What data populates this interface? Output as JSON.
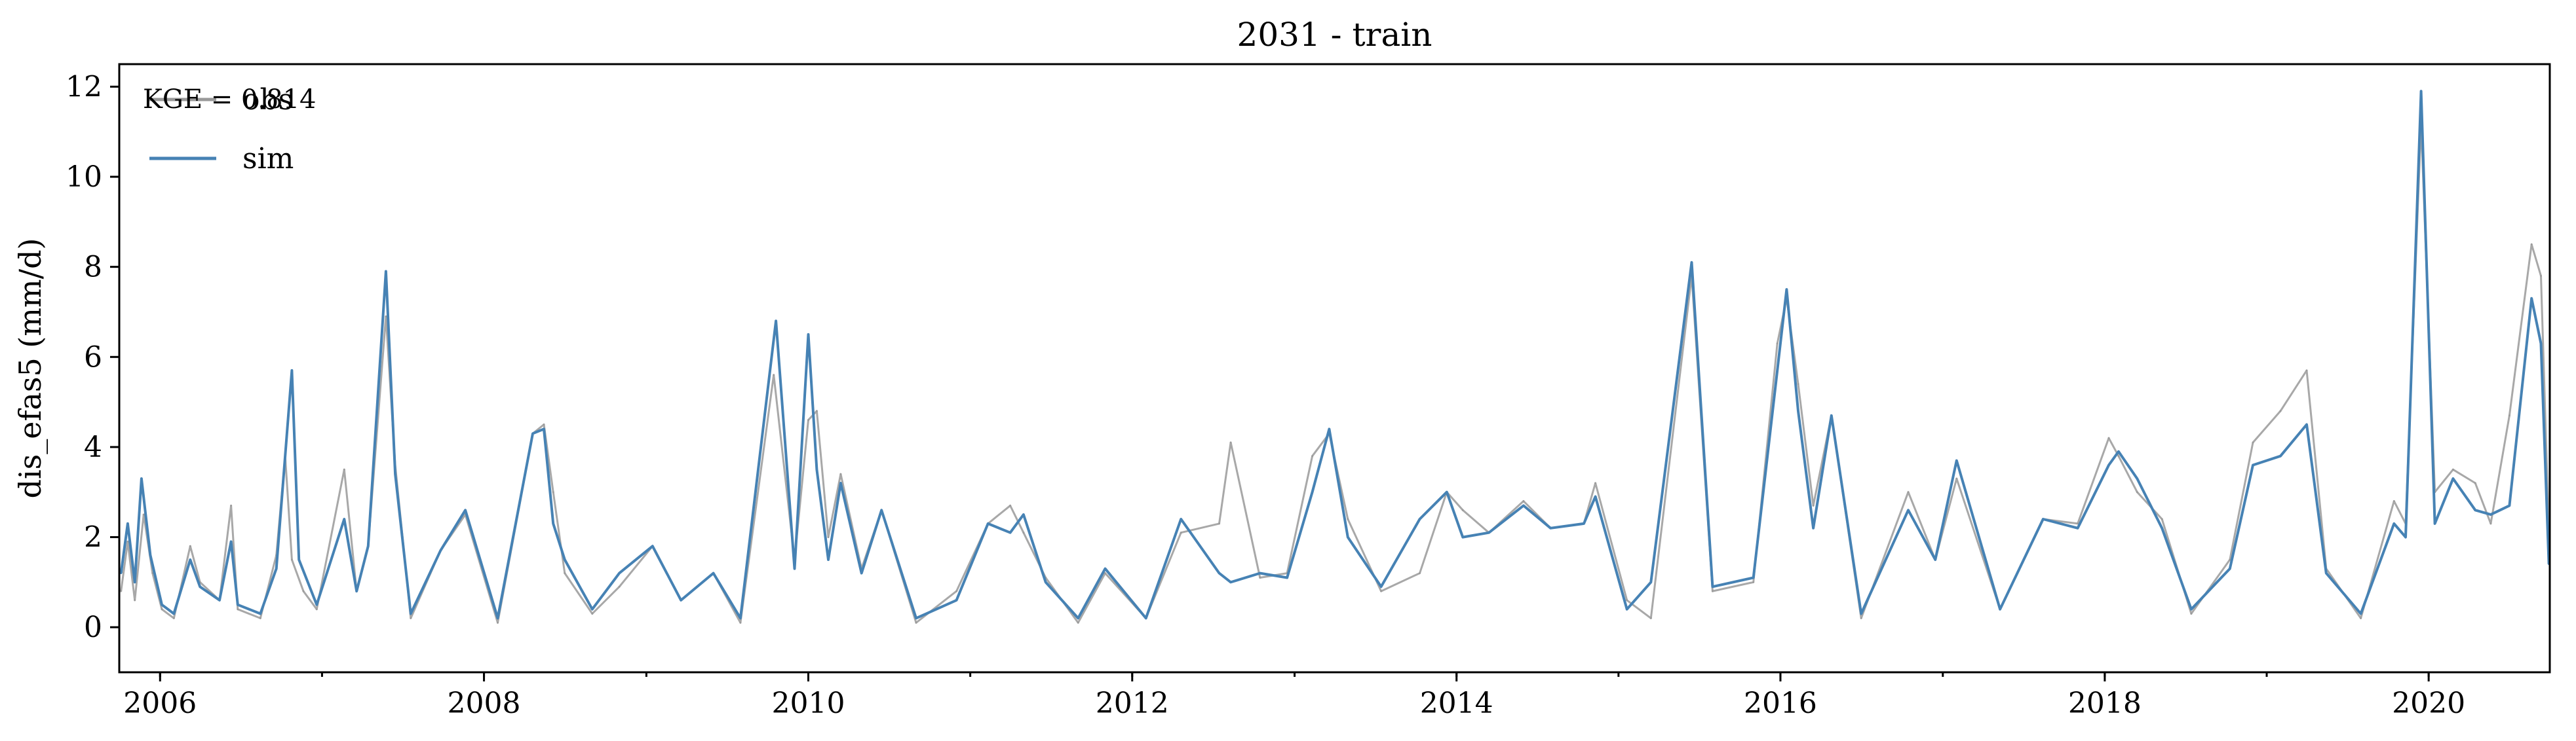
{
  "chart_data": {
    "type": "line",
    "title": "2031 - train",
    "xlabel": "",
    "ylabel": "dis_efas5 (mm/d)",
    "x_range": [
      "2005-10-01",
      "2020-09-30"
    ],
    "ylim": [
      -1,
      12.5
    ],
    "y_ticks": [
      0,
      2,
      4,
      6,
      8,
      10,
      12
    ],
    "x_ticks": [
      "2006",
      "2008",
      "2010",
      "2012",
      "2014",
      "2016",
      "2018",
      "2020"
    ],
    "grid": false,
    "legend_position": "top-left",
    "annotation": "KGE = 0.814",
    "series": [
      {
        "name": "obs",
        "color": "#999999",
        "points": [
          [
            "2005-10-05",
            0.8
          ],
          [
            "2005-10-20",
            1.9
          ],
          [
            "2005-11-05",
            0.6
          ],
          [
            "2005-11-25",
            2.5
          ],
          [
            "2005-12-15",
            1.2
          ],
          [
            "2006-01-05",
            0.4
          ],
          [
            "2006-02-01",
            0.2
          ],
          [
            "2006-03-10",
            1.8
          ],
          [
            "2006-04-01",
            1.0
          ],
          [
            "2006-05-15",
            0.6
          ],
          [
            "2006-06-10",
            2.7
          ],
          [
            "2006-06-25",
            0.4
          ],
          [
            "2006-08-15",
            0.2
          ],
          [
            "2006-09-20",
            1.6
          ],
          [
            "2006-10-10",
            3.8
          ],
          [
            "2006-10-25",
            1.5
          ],
          [
            "2006-11-20",
            0.8
          ],
          [
            "2006-12-20",
            0.4
          ],
          [
            "2007-02-20",
            3.5
          ],
          [
            "2007-03-20",
            0.8
          ],
          [
            "2007-04-15",
            1.8
          ],
          [
            "2007-05-25",
            6.9
          ],
          [
            "2007-06-15",
            3.6
          ],
          [
            "2007-07-20",
            0.2
          ],
          [
            "2007-09-25",
            1.7
          ],
          [
            "2007-11-20",
            2.5
          ],
          [
            "2008-02-01",
            0.1
          ],
          [
            "2008-04-20",
            4.3
          ],
          [
            "2008-05-15",
            4.5
          ],
          [
            "2008-06-05",
            3.0
          ],
          [
            "2008-07-01",
            1.2
          ],
          [
            "2008-09-01",
            0.3
          ],
          [
            "2008-11-01",
            0.9
          ],
          [
            "2009-01-15",
            1.8
          ],
          [
            "2009-03-20",
            0.6
          ],
          [
            "2009-06-01",
            1.2
          ],
          [
            "2009-08-01",
            0.1
          ],
          [
            "2009-10-15",
            5.6
          ],
          [
            "2009-12-01",
            1.5
          ],
          [
            "2010-01-01",
            4.6
          ],
          [
            "2010-01-20",
            4.8
          ],
          [
            "2010-02-15",
            2.0
          ],
          [
            "2010-03-15",
            3.4
          ],
          [
            "2010-05-01",
            1.3
          ],
          [
            "2010-06-15",
            2.6
          ],
          [
            "2010-09-01",
            0.1
          ],
          [
            "2010-12-01",
            0.8
          ],
          [
            "2011-02-10",
            2.3
          ],
          [
            "2011-04-01",
            2.7
          ],
          [
            "2011-05-01",
            2.1
          ],
          [
            "2011-06-20",
            1.1
          ],
          [
            "2011-09-01",
            0.1
          ],
          [
            "2011-11-01",
            1.2
          ],
          [
            "2012-02-01",
            0.2
          ],
          [
            "2012-04-20",
            2.1
          ],
          [
            "2012-07-15",
            2.3
          ],
          [
            "2012-08-10",
            4.1
          ],
          [
            "2012-10-15",
            1.1
          ],
          [
            "2012-12-15",
            1.2
          ],
          [
            "2013-02-10",
            3.8
          ],
          [
            "2013-03-20",
            4.3
          ],
          [
            "2013-05-01",
            2.4
          ],
          [
            "2013-07-15",
            0.8
          ],
          [
            "2013-10-10",
            1.2
          ],
          [
            "2013-12-10",
            3.0
          ],
          [
            "2014-01-15",
            2.6
          ],
          [
            "2014-03-15",
            2.1
          ],
          [
            "2014-06-01",
            2.8
          ],
          [
            "2014-08-01",
            2.2
          ],
          [
            "2014-10-15",
            2.3
          ],
          [
            "2014-11-10",
            3.2
          ],
          [
            "2015-01-20",
            0.6
          ],
          [
            "2015-03-15",
            0.2
          ],
          [
            "2015-06-15",
            7.8
          ],
          [
            "2015-08-01",
            0.8
          ],
          [
            "2015-11-01",
            1.0
          ],
          [
            "2015-12-25",
            6.3
          ],
          [
            "2016-01-15",
            7.3
          ],
          [
            "2016-02-10",
            5.4
          ],
          [
            "2016-03-15",
            2.7
          ],
          [
            "2016-04-25",
            4.7
          ],
          [
            "2016-07-01",
            0.2
          ],
          [
            "2016-10-15",
            3.0
          ],
          [
            "2016-12-15",
            1.5
          ],
          [
            "2017-02-01",
            3.3
          ],
          [
            "2017-05-10",
            0.4
          ],
          [
            "2017-08-15",
            2.4
          ],
          [
            "2017-11-01",
            2.3
          ],
          [
            "2018-01-10",
            4.2
          ],
          [
            "2018-02-01",
            3.8
          ],
          [
            "2018-03-15",
            3.0
          ],
          [
            "2018-05-10",
            2.4
          ],
          [
            "2018-07-15",
            0.3
          ],
          [
            "2018-10-10",
            1.5
          ],
          [
            "2018-12-01",
            4.1
          ],
          [
            "2019-02-01",
            4.8
          ],
          [
            "2019-04-01",
            5.7
          ],
          [
            "2019-05-15",
            1.3
          ],
          [
            "2019-08-01",
            0.2
          ],
          [
            "2019-10-15",
            2.8
          ],
          [
            "2019-11-10",
            2.3
          ],
          [
            "2019-12-15",
            11.2
          ],
          [
            "2020-01-15",
            3.0
          ],
          [
            "2020-02-25",
            3.5
          ],
          [
            "2020-04-15",
            3.2
          ],
          [
            "2020-05-20",
            2.3
          ],
          [
            "2020-07-01",
            4.7
          ],
          [
            "2020-08-20",
            8.5
          ],
          [
            "2020-09-10",
            7.8
          ],
          [
            "2020-09-28",
            2.1
          ]
        ]
      },
      {
        "name": "sim",
        "color": "#4682b4",
        "points": [
          [
            "2005-10-05",
            1.2
          ],
          [
            "2005-10-20",
            2.3
          ],
          [
            "2005-11-05",
            1.0
          ],
          [
            "2005-11-20",
            3.3
          ],
          [
            "2005-12-10",
            1.6
          ],
          [
            "2006-01-05",
            0.5
          ],
          [
            "2006-02-01",
            0.3
          ],
          [
            "2006-03-10",
            1.5
          ],
          [
            "2006-04-01",
            0.9
          ],
          [
            "2006-05-15",
            0.6
          ],
          [
            "2006-06-10",
            1.9
          ],
          [
            "2006-06-25",
            0.5
          ],
          [
            "2006-08-15",
            0.3
          ],
          [
            "2006-09-20",
            1.3
          ],
          [
            "2006-10-25",
            5.7
          ],
          [
            "2006-11-10",
            1.5
          ],
          [
            "2006-12-20",
            0.5
          ],
          [
            "2007-02-20",
            2.4
          ],
          [
            "2007-03-20",
            0.8
          ],
          [
            "2007-04-15",
            1.8
          ],
          [
            "2007-05-25",
            7.9
          ],
          [
            "2007-06-15",
            3.4
          ],
          [
            "2007-07-20",
            0.3
          ],
          [
            "2007-09-25",
            1.7
          ],
          [
            "2007-11-20",
            2.6
          ],
          [
            "2008-02-01",
            0.2
          ],
          [
            "2008-04-20",
            4.3
          ],
          [
            "2008-05-15",
            4.4
          ],
          [
            "2008-06-05",
            2.3
          ],
          [
            "2008-07-01",
            1.5
          ],
          [
            "2008-09-01",
            0.4
          ],
          [
            "2008-11-01",
            1.2
          ],
          [
            "2009-01-15",
            1.8
          ],
          [
            "2009-03-20",
            0.6
          ],
          [
            "2009-06-01",
            1.2
          ],
          [
            "2009-08-01",
            0.2
          ],
          [
            "2009-10-20",
            6.8
          ],
          [
            "2009-12-01",
            1.3
          ],
          [
            "2010-01-01",
            6.5
          ],
          [
            "2010-01-20",
            3.5
          ],
          [
            "2010-02-15",
            1.5
          ],
          [
            "2010-03-15",
            3.2
          ],
          [
            "2010-05-01",
            1.2
          ],
          [
            "2010-06-15",
            2.6
          ],
          [
            "2010-09-01",
            0.2
          ],
          [
            "2010-12-01",
            0.6
          ],
          [
            "2011-02-10",
            2.3
          ],
          [
            "2011-04-01",
            2.1
          ],
          [
            "2011-05-01",
            2.5
          ],
          [
            "2011-06-20",
            1.0
          ],
          [
            "2011-09-01",
            0.2
          ],
          [
            "2011-11-01",
            1.3
          ],
          [
            "2012-02-01",
            0.2
          ],
          [
            "2012-04-20",
            2.4
          ],
          [
            "2012-07-15",
            1.2
          ],
          [
            "2012-08-10",
            1.0
          ],
          [
            "2012-10-15",
            1.2
          ],
          [
            "2012-12-15",
            1.1
          ],
          [
            "2013-02-10",
            3.0
          ],
          [
            "2013-03-20",
            4.4
          ],
          [
            "2013-05-01",
            2.0
          ],
          [
            "2013-07-15",
            0.9
          ],
          [
            "2013-10-10",
            2.4
          ],
          [
            "2013-12-10",
            3.0
          ],
          [
            "2014-01-15",
            2.0
          ],
          [
            "2014-03-15",
            2.1
          ],
          [
            "2014-06-01",
            2.7
          ],
          [
            "2014-08-01",
            2.2
          ],
          [
            "2014-10-15",
            2.3
          ],
          [
            "2014-11-10",
            2.9
          ],
          [
            "2015-01-20",
            0.4
          ],
          [
            "2015-03-15",
            1.0
          ],
          [
            "2015-06-15",
            8.1
          ],
          [
            "2015-08-01",
            0.9
          ],
          [
            "2015-11-01",
            1.1
          ],
          [
            "2015-12-25",
            5.7
          ],
          [
            "2016-01-15",
            7.5
          ],
          [
            "2016-02-10",
            4.8
          ],
          [
            "2016-03-15",
            2.2
          ],
          [
            "2016-04-25",
            4.7
          ],
          [
            "2016-07-01",
            0.3
          ],
          [
            "2016-10-15",
            2.6
          ],
          [
            "2016-12-15",
            1.5
          ],
          [
            "2017-02-01",
            3.7
          ],
          [
            "2017-05-10",
            0.4
          ],
          [
            "2017-08-15",
            2.4
          ],
          [
            "2017-11-01",
            2.2
          ],
          [
            "2018-01-10",
            3.6
          ],
          [
            "2018-02-01",
            3.9
          ],
          [
            "2018-03-15",
            3.3
          ],
          [
            "2018-05-10",
            2.2
          ],
          [
            "2018-07-15",
            0.4
          ],
          [
            "2018-10-10",
            1.3
          ],
          [
            "2018-12-01",
            3.6
          ],
          [
            "2019-02-01",
            3.8
          ],
          [
            "2019-04-01",
            4.5
          ],
          [
            "2019-05-15",
            1.2
          ],
          [
            "2019-08-01",
            0.3
          ],
          [
            "2019-10-15",
            2.3
          ],
          [
            "2019-11-10",
            2.0
          ],
          [
            "2019-12-15",
            11.9
          ],
          [
            "2020-01-15",
            2.3
          ],
          [
            "2020-02-25",
            3.3
          ],
          [
            "2020-04-15",
            2.6
          ],
          [
            "2020-05-20",
            2.5
          ],
          [
            "2020-07-01",
            2.7
          ],
          [
            "2020-08-20",
            7.3
          ],
          [
            "2020-09-10",
            6.3
          ],
          [
            "2020-09-28",
            1.4
          ]
        ]
      }
    ]
  }
}
